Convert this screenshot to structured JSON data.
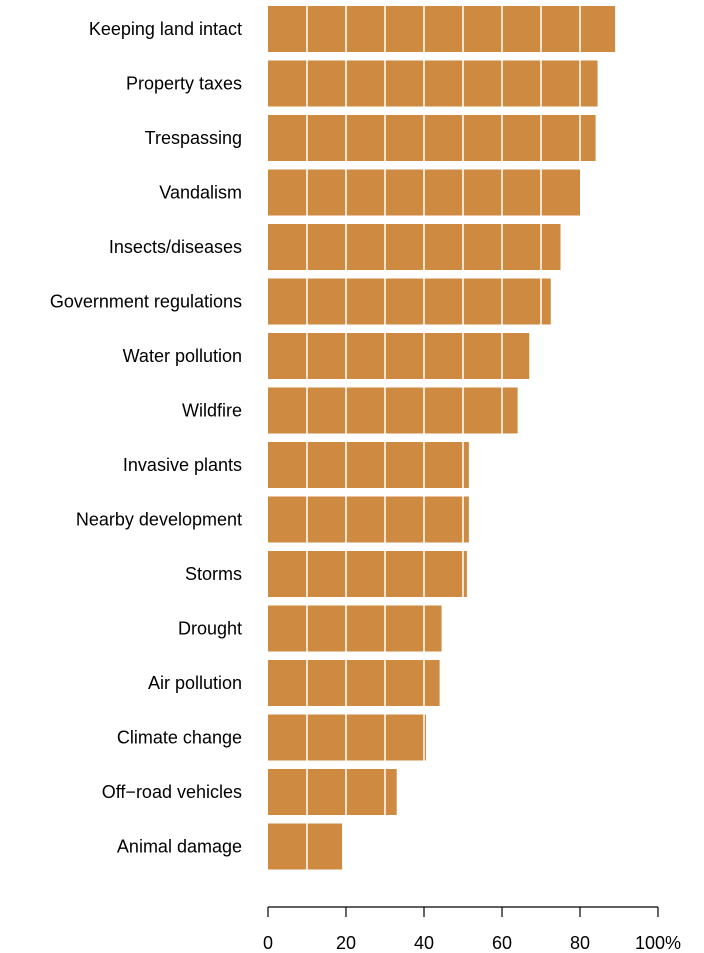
{
  "chart_data": {
    "type": "bar",
    "orientation": "horizontal",
    "title": "",
    "xlabel": "",
    "ylabel": "",
    "xlim": [
      0,
      100
    ],
    "grid": false,
    "gridline_interval": 10,
    "bar_color": "#cd8a40",
    "categories": [
      "Keeping land intact",
      "Property taxes",
      "Trespassing",
      "Vandalism",
      "Insects/diseases",
      "Government regulations",
      "Water pollution",
      "Wildfire",
      "Invasive plants",
      "Nearby development",
      "Storms",
      "Drought",
      "Air pollution",
      "Climate change",
      "Off−road vehicles",
      "Animal damage"
    ],
    "values": [
      89,
      84.5,
      84,
      80,
      75,
      72.5,
      67,
      64,
      51.5,
      51.5,
      51,
      44.5,
      44,
      40.5,
      33,
      19
    ],
    "ticks": [
      {
        "value": 0,
        "label": "0"
      },
      {
        "value": 20,
        "label": "20"
      },
      {
        "value": 40,
        "label": "40"
      },
      {
        "value": 60,
        "label": "60"
      },
      {
        "value": 80,
        "label": "80"
      },
      {
        "value": 100,
        "label": "100%"
      }
    ]
  }
}
